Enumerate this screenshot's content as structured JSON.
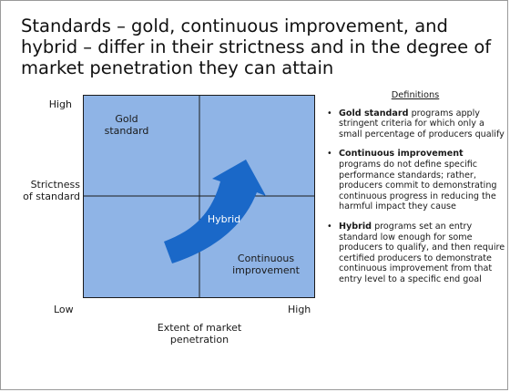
{
  "title": "Standards – gold, continuous improvement, and hybrid – differ in their strictness and in the degree of market penetration they can attain",
  "matrix": {
    "quadrant_labels": {
      "gold": [
        "Gold",
        "standard"
      ],
      "continuous": [
        "Continuous",
        "improvement"
      ],
      "hybrid": "Hybrid"
    },
    "axes": {
      "y_high": "High",
      "y_label": [
        "Strictness",
        "of standard"
      ],
      "low": "Low",
      "x_high": "High",
      "x_label": [
        "Extent of market",
        "penetration"
      ]
    },
    "colors": {
      "quadrant_fill": "#8fb4e6",
      "arrow_fill": "#1a68c8",
      "divider": "#1b1b1b"
    }
  },
  "definitions": {
    "heading": "Definitions",
    "items": [
      {
        "term": "Gold standard",
        "text": " programs apply stringent criteria for which only a small percentage of producers qualify"
      },
      {
        "term": "Continuous improvement",
        "text": " programs do not define specific performance standards; rather, producers commit to demonstrating continuous progress in reducing the harmful impact they cause"
      },
      {
        "term": "Hybrid",
        "text": " programs set an entry standard low enough for some producers to qualify, and then require certified producers to demonstrate continuous improvement from that entry level to a specific end goal"
      }
    ]
  }
}
